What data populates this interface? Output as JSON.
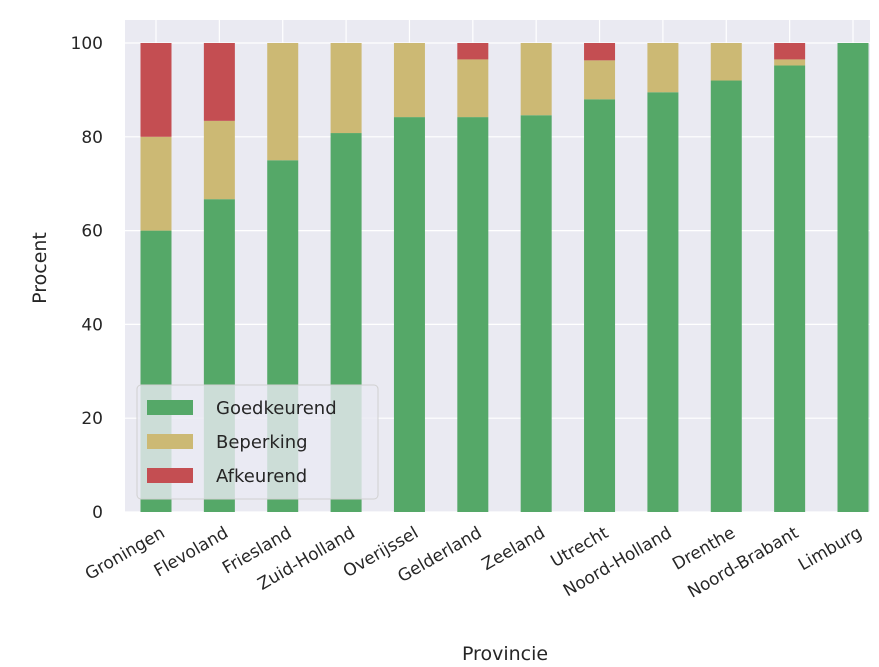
{
  "chart_data": {
    "type": "bar",
    "stacked": true,
    "title": "",
    "xlabel": "Provincie",
    "ylabel": "Procent",
    "ylim": [
      0,
      100
    ],
    "yticks": [
      0,
      20,
      40,
      60,
      80,
      100
    ],
    "grid": true,
    "legend_position": "lower-left",
    "categories": [
      "Groningen",
      "Flevoland",
      "Friesland",
      "Zuid-Holland",
      "Overijssel",
      "Gelderland",
      "Zeeland",
      "Utrecht",
      "Noord-Holland",
      "Drenthe",
      "Noord-Brabant",
      "Limburg"
    ],
    "series": [
      {
        "name": "Goedkeurend",
        "color": "#55a868",
        "values": [
          60,
          66.7,
          75,
          80.8,
          84.2,
          84.2,
          84.6,
          88,
          89.5,
          92,
          95.2,
          100
        ]
      },
      {
        "name": "Beperking",
        "color": "#ccb974",
        "values": [
          20,
          16.7,
          25,
          19.2,
          15.8,
          12.3,
          15.4,
          8.3,
          10.5,
          8,
          1.3,
          0
        ]
      },
      {
        "name": "Afkeurend",
        "color": "#c44e52",
        "values": [
          20,
          16.6,
          0,
          0,
          0,
          3.5,
          0,
          3.7,
          0,
          0,
          3.5,
          0
        ]
      }
    ]
  }
}
